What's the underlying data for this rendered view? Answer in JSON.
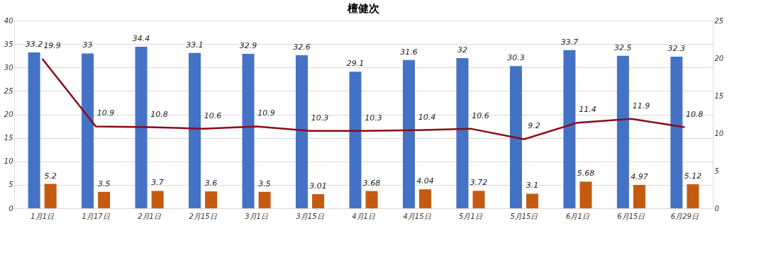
{
  "chart_data": {
    "type": "bar",
    "title": "檀健次",
    "categories": [
      "1月1日",
      "1月17日",
      "2月1日",
      "2月15日",
      "3月1日",
      "3月15日",
      "4月1日",
      "4月15日",
      "5月1日",
      "5月15日",
      "6月1日",
      "6月15日",
      "6月29日"
    ],
    "series": [
      {
        "type": "bar",
        "color": "#4472c4",
        "values": [
          33.2,
          33,
          34.4,
          33.1,
          32.9,
          32.6,
          29.1,
          31.6,
          32,
          30.3,
          33.7,
          32.5,
          32.3
        ]
      },
      {
        "type": "bar",
        "color": "#c55a11",
        "values": [
          5.2,
          3.5,
          3.7,
          3.6,
          3.5,
          3.01,
          3.68,
          4.04,
          3.72,
          3.1,
          5.68,
          4.97,
          5.12
        ]
      },
      {
        "type": "line",
        "axis": "y2",
        "color": "#8b0a1a",
        "values": [
          19.9,
          10.9,
          10.8,
          10.6,
          10.9,
          10.3,
          10.3,
          10.4,
          10.6,
          9.2,
          11.4,
          11.9,
          10.8
        ]
      }
    ],
    "ylim": [
      0,
      40
    ],
    "yticks": [
      0,
      5,
      10,
      15,
      20,
      25,
      30,
      35,
      40
    ],
    "y2lim": [
      0,
      25
    ],
    "y2ticks": [
      0,
      5,
      10,
      15,
      20,
      25
    ],
    "grid": "y",
    "data_labels": true,
    "marker": "none",
    "line_style": "solid",
    "legend": false
  }
}
